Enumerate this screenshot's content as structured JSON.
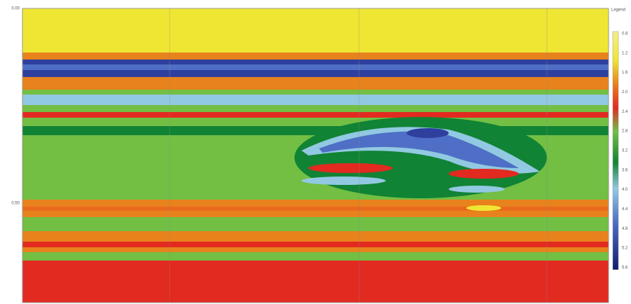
{
  "legend": {
    "title": "Legend",
    "ticks": [
      "0.8",
      "1.2",
      "1.6",
      "2.0",
      "2.4",
      "2.8",
      "3.2",
      "3.6",
      "4.0",
      "4.4",
      "4.8",
      "5.2",
      "5.6"
    ]
  },
  "axis": {
    "labels": [
      "0.00",
      "0.50"
    ]
  }
}
